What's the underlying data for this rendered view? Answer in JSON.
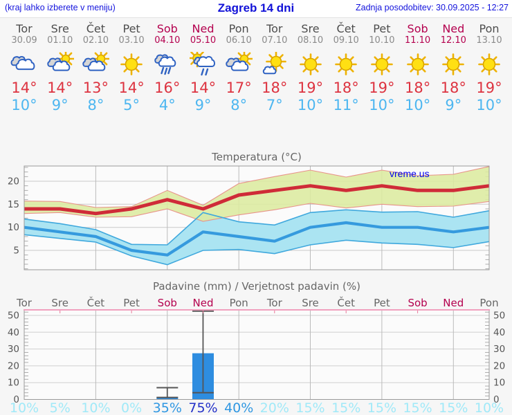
{
  "header": {
    "note": "(kraj lahko izberete v meniju)",
    "title": "Zagreb 14 dni",
    "updated": "Zadnja posodobitev: 30.09.2025 - 12:27"
  },
  "days": [
    {
      "name": "Tor",
      "date": "30.09",
      "red": false,
      "icon": "cloudy",
      "tmax": "14°",
      "tmin": "10°"
    },
    {
      "name": "Sre",
      "date": "01.10",
      "red": false,
      "icon": "partly-cloudy",
      "tmax": "14°",
      "tmin": "9°"
    },
    {
      "name": "Čet",
      "date": "02.10",
      "red": false,
      "icon": "partly-cloudy",
      "tmax": "13°",
      "tmin": "8°"
    },
    {
      "name": "Pet",
      "date": "03.10",
      "red": false,
      "icon": "sunny",
      "tmax": "14°",
      "tmin": "5°"
    },
    {
      "name": "Sob",
      "date": "04.10",
      "red": true,
      "icon": "rain",
      "tmax": "16°",
      "tmin": "4°"
    },
    {
      "name": "Ned",
      "date": "05.10",
      "red": true,
      "icon": "sun-rain",
      "tmax": "14°",
      "tmin": "9°"
    },
    {
      "name": "Pon",
      "date": "06.10",
      "red": false,
      "icon": "partly-cloudy",
      "tmax": "17°",
      "tmin": "8°"
    },
    {
      "name": "Tor",
      "date": "07.10",
      "red": false,
      "icon": "mostly-sunny",
      "tmax": "18°",
      "tmin": "7°"
    },
    {
      "name": "Sre",
      "date": "08.10",
      "red": false,
      "icon": "sunny",
      "tmax": "19°",
      "tmin": "10°"
    },
    {
      "name": "Čet",
      "date": "09.10",
      "red": false,
      "icon": "sunny",
      "tmax": "18°",
      "tmin": "11°"
    },
    {
      "name": "Pet",
      "date": "10.10",
      "red": false,
      "icon": "sunny",
      "tmax": "19°",
      "tmin": "10°"
    },
    {
      "name": "Sob",
      "date": "11.10",
      "red": true,
      "icon": "sunny",
      "tmax": "18°",
      "tmin": "10°"
    },
    {
      "name": "Ned",
      "date": "12.10",
      "red": true,
      "icon": "sunny",
      "tmax": "18°",
      "tmin": "9°"
    },
    {
      "name": "Pon",
      "date": "13.10",
      "red": false,
      "icon": "sunny",
      "tmax": "19°",
      "tmin": "10°"
    }
  ],
  "colors": {
    "page_bg": "#f6f6f6",
    "header_bg": "#ffffff",
    "link_blue": "#1313dd",
    "weekday_gray": "#4d4d4d",
    "date_gray": "#8a8a8a",
    "holiday_red": "#b4004e",
    "tmax_red": "#dd3340",
    "tmin_blue": "#4db6f0",
    "grid": "#c9c9c9",
    "frame": "#9a9a9a",
    "tick_text": "#555555",
    "title_text": "#666666",
    "max_line": "#cf2b38",
    "max_band": "#dcea9f",
    "max_band_edge": "#e8938a",
    "min_line": "#359ade",
    "min_band": "#abe4f2",
    "min_band_edge": "#3fa8dd",
    "bar_blue": "#2e8de0",
    "whisker": "#555555",
    "precip_top_pink": "#f0a0be",
    "prob_low": "#a0e9f8",
    "prob_mid": "#2f97e2",
    "prob_high": "#2431c8",
    "watermark_blue": "#0000ee"
  },
  "chart_data": [
    {
      "type": "line",
      "title": "Temperatura (°C)",
      "watermark": "vreme.us",
      "categories": [
        "Tor 30.09",
        "Sre 01.10",
        "Čet 02.10",
        "Pet 03.10",
        "Sob 04.10",
        "Ned 05.10",
        "Pon 06.10",
        "Tor 07.10",
        "Sre 08.10",
        "Čet 09.10",
        "Pet 10.10",
        "Sob 11.10",
        "Ned 12.10",
        "Pon 13.10"
      ],
      "ylim": [
        0.8,
        23.3
      ],
      "yticks": [
        5,
        10,
        15,
        20
      ],
      "grid": true,
      "series": [
        {
          "name": "max temperature",
          "color": "#cf2b38",
          "values": [
            14,
            14,
            13,
            14,
            16,
            14,
            17,
            18,
            19,
            18,
            19,
            18,
            18,
            19
          ]
        },
        {
          "name": "min temperature",
          "color": "#359ade",
          "values": [
            10,
            9,
            8,
            5,
            4,
            9,
            8,
            7,
            10,
            11,
            10,
            10,
            9,
            10
          ]
        }
      ],
      "bands": {
        "max_top": [
          15.7,
          15.6,
          14.3,
          14.5,
          18.0,
          14.8,
          19.5,
          21.0,
          22.4,
          20.9,
          22.4,
          21.2,
          21.5,
          23.2
        ],
        "max_bottom": [
          13.0,
          13.2,
          12.2,
          12.3,
          14.0,
          11.3,
          12.7,
          13.8,
          15.2,
          14.2,
          15.0,
          14.5,
          14.6,
          15.6
        ],
        "min_top": [
          11.8,
          10.8,
          9.5,
          6.3,
          6.2,
          13.2,
          11.2,
          10.5,
          13.2,
          13.8,
          13.3,
          13.4,
          12.2,
          13.6
        ],
        "min_bottom": [
          8.4,
          7.6,
          6.8,
          3.8,
          1.9,
          5.0,
          5.2,
          4.3,
          6.2,
          7.2,
          6.6,
          6.3,
          5.6,
          6.9
        ]
      }
    },
    {
      "type": "bar",
      "title": "Padavine (mm) / Verjetnost padavin (%)",
      "categories": [
        "Tor",
        "Sre",
        "Čet",
        "Pet",
        "Sob",
        "Ned",
        "Pon",
        "Tor",
        "Sre",
        "Čet",
        "Pet",
        "Sob",
        "Ned",
        "Pon"
      ],
      "red_day_indices": [
        4,
        5,
        11,
        12
      ],
      "ylim": [
        0,
        53.3
      ],
      "yticks": [
        0,
        10,
        20,
        30,
        40,
        50
      ],
      "values": [
        0,
        0,
        0,
        0,
        1.2,
        27.5,
        0,
        0,
        0,
        0,
        0,
        0,
        0,
        0
      ],
      "bars": [
        {
          "day_index": 4,
          "value": 1.2,
          "whisker_low": 1.2,
          "whisker_high": 7
        },
        {
          "day_index": 5,
          "value": 27.5,
          "whisker_low": 4,
          "whisker_high": 52.6
        }
      ],
      "probabilities": [
        10,
        5,
        10,
        0,
        35,
        75,
        40,
        20,
        15,
        15,
        15,
        15,
        15,
        10
      ]
    }
  ]
}
